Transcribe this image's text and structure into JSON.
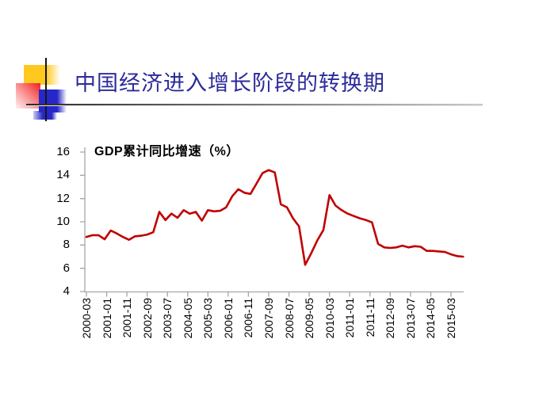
{
  "slide": {
    "title": "中国经济进入增长阶段的转换期",
    "title_color": "#2B2B9B",
    "decor": {
      "yellow_square": "#FFC81E",
      "red_square": "#EE2121",
      "blue_square": "#2727C8",
      "crosshair_line": "#141414"
    }
  },
  "chart": {
    "title": "GDP累计同比增速（%）"
  },
  "chart_data": {
    "type": "line",
    "title": "GDP累计同比增速（%）",
    "xlabel": "",
    "ylabel": "",
    "grid": false,
    "legend": "none",
    "line_color": "#C00000",
    "axis_color": "#A6A6A6",
    "ylim": [
      4,
      16
    ],
    "y_tick_values": [
      16,
      14,
      12,
      10,
      8,
      6,
      4
    ],
    "x_tick_labels": [
      "2000-03",
      "2001-01",
      "2001-11",
      "2002-09",
      "2003-07",
      "2004-05",
      "2005-03",
      "2006-01",
      "2006-11",
      "2007-09",
      "2008-07",
      "2009-05",
      "2010-03",
      "2011-01",
      "2011-11",
      "2012-09",
      "2013-07",
      "2014-05",
      "2015-03"
    ],
    "x": [
      "2000-03",
      "2000-06",
      "2000-09",
      "2000-12",
      "2001-03",
      "2001-06",
      "2001-09",
      "2001-12",
      "2002-03",
      "2002-06",
      "2002-09",
      "2002-12",
      "2003-03",
      "2003-06",
      "2003-09",
      "2003-12",
      "2004-03",
      "2004-06",
      "2004-09",
      "2004-12",
      "2005-03",
      "2005-06",
      "2005-09",
      "2005-12",
      "2006-03",
      "2006-06",
      "2006-09",
      "2006-12",
      "2007-03",
      "2007-06",
      "2007-09",
      "2007-12",
      "2008-03",
      "2008-06",
      "2008-09",
      "2008-12",
      "2009-03",
      "2009-06",
      "2009-09",
      "2009-12",
      "2010-03",
      "2010-06",
      "2010-09",
      "2010-12",
      "2011-03",
      "2011-06",
      "2011-09",
      "2011-12",
      "2012-03",
      "2012-06",
      "2012-09",
      "2012-12",
      "2013-03",
      "2013-06",
      "2013-09",
      "2013-12",
      "2014-03",
      "2014-06",
      "2014-09",
      "2014-12",
      "2015-03",
      "2015-06",
      "2015-09"
    ],
    "values": [
      8.7,
      8.85,
      8.85,
      8.5,
      9.25,
      9.0,
      8.7,
      8.45,
      8.75,
      8.8,
      8.9,
      9.1,
      10.85,
      10.15,
      10.7,
      10.35,
      11.0,
      10.7,
      10.85,
      10.1,
      11.0,
      10.9,
      10.95,
      11.25,
      12.2,
      12.8,
      12.5,
      12.4,
      13.3,
      14.2,
      14.45,
      14.25,
      11.5,
      11.25,
      10.3,
      9.6,
      6.3,
      7.3,
      8.4,
      9.3,
      12.3,
      11.4,
      11.0,
      10.7,
      10.5,
      10.3,
      10.15,
      9.95,
      8.1,
      7.8,
      7.75,
      7.8,
      7.95,
      7.8,
      7.9,
      7.85,
      7.5,
      7.5,
      7.45,
      7.4,
      7.2,
      7.05,
      7.0
    ]
  }
}
